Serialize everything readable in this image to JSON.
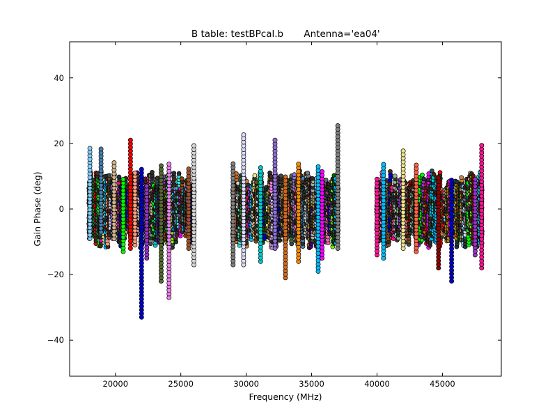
{
  "chart_data": {
    "type": "scatter",
    "title_table": "B table: testBPcal.b",
    "title_antenna": "Antenna='ea04'",
    "xlabel": "Frequency (MHz)",
    "ylabel": "Gain Phase (deg)",
    "xlim": [
      16500,
      49500
    ],
    "ylim": [
      -51,
      51
    ],
    "x_ticks": [
      20000,
      25000,
      30000,
      35000,
      40000,
      45000
    ],
    "x_tick_labels": [
      "20000",
      "25000",
      "30000",
      "35000",
      "40000",
      "45000"
    ],
    "y_ticks": [
      40,
      20,
      0,
      -20,
      -40
    ],
    "y_tick_labels": [
      "40",
      "20",
      "0",
      "−20",
      "−40"
    ],
    "grid": false,
    "marker": "circle",
    "marker_edge_color": "#000000",
    "frequency_bands": [
      {
        "x_start": 18000,
        "x_end": 26000
      },
      {
        "x_start": 29000,
        "x_end": 37000
      },
      {
        "x_start": 40000,
        "x_end": 48000
      }
    ],
    "series": [
      {
        "color": "#87cefa",
        "x": 18050,
        "y_min": -9,
        "y_max": 19
      },
      {
        "color": "#4682b4",
        "x": 18900,
        "y_min": -7,
        "y_max": 19
      },
      {
        "color": "#d2b48c",
        "x": 19900,
        "y_min": -9,
        "y_max": 15
      },
      {
        "color": "#00ff00",
        "x": 20600,
        "y_min": -13,
        "y_max": 9
      },
      {
        "color": "#ff0000",
        "x": 21150,
        "y_min": -12,
        "y_max": 22
      },
      {
        "color": "#0000cd",
        "x": 22000,
        "y_min": -33,
        "y_max": 13
      },
      {
        "color": "#ffa07a",
        "x": 21500,
        "y_min": -11,
        "y_max": 11
      },
      {
        "color": "#9932cc",
        "x": 22400,
        "y_min": -15,
        "y_max": 8
      },
      {
        "color": "#ee82ee",
        "x": 24100,
        "y_min": -27,
        "y_max": 14
      },
      {
        "color": "#556b2f",
        "x": 23500,
        "y_min": -22,
        "y_max": 14
      },
      {
        "color": "#a0522d",
        "x": 25600,
        "y_min": -12,
        "y_max": 13
      },
      {
        "color": "#d3d3d3",
        "x": 26000,
        "y_min": -17,
        "y_max": 20
      },
      {
        "color": "#808080",
        "x": 29000,
        "y_min": -17,
        "y_max": 14
      },
      {
        "color": "#dcdcff",
        "x": 29800,
        "y_min": -17,
        "y_max": 23
      },
      {
        "color": "#00ced1",
        "x": 31100,
        "y_min": -16,
        "y_max": 13
      },
      {
        "color": "#9370db",
        "x": 32200,
        "y_min": -12,
        "y_max": 21
      },
      {
        "color": "#ff8c00",
        "x": 34000,
        "y_min": -16,
        "y_max": 14
      },
      {
        "color": "#d2691e",
        "x": 33000,
        "y_min": -21,
        "y_max": 10
      },
      {
        "color": "#ff00ff",
        "x": 35800,
        "y_min": -15,
        "y_max": 12
      },
      {
        "color": "#00bfff",
        "x": 35500,
        "y_min": -19,
        "y_max": 13
      },
      {
        "color": "#808080",
        "x": 37000,
        "y_min": -12,
        "y_max": 26
      },
      {
        "color": "#ff1493",
        "x": 40000,
        "y_min": -14,
        "y_max": 10
      },
      {
        "color": "#00bfff",
        "x": 40500,
        "y_min": -15,
        "y_max": 14
      },
      {
        "color": "#f0e68c",
        "x": 42000,
        "y_min": -12,
        "y_max": 18
      },
      {
        "color": "#ff6347",
        "x": 43000,
        "y_min": -13,
        "y_max": 14
      },
      {
        "color": "#8b0000",
        "x": 44700,
        "y_min": -18,
        "y_max": 10
      },
      {
        "color": "#0000cd",
        "x": 45700,
        "y_min": -22,
        "y_max": 9
      },
      {
        "color": "#ff1493",
        "x": 48000,
        "y_min": -18,
        "y_max": 20
      },
      {
        "color": "#9932cc",
        "x": 47500,
        "y_min": -14,
        "y_max": 10
      }
    ]
  }
}
